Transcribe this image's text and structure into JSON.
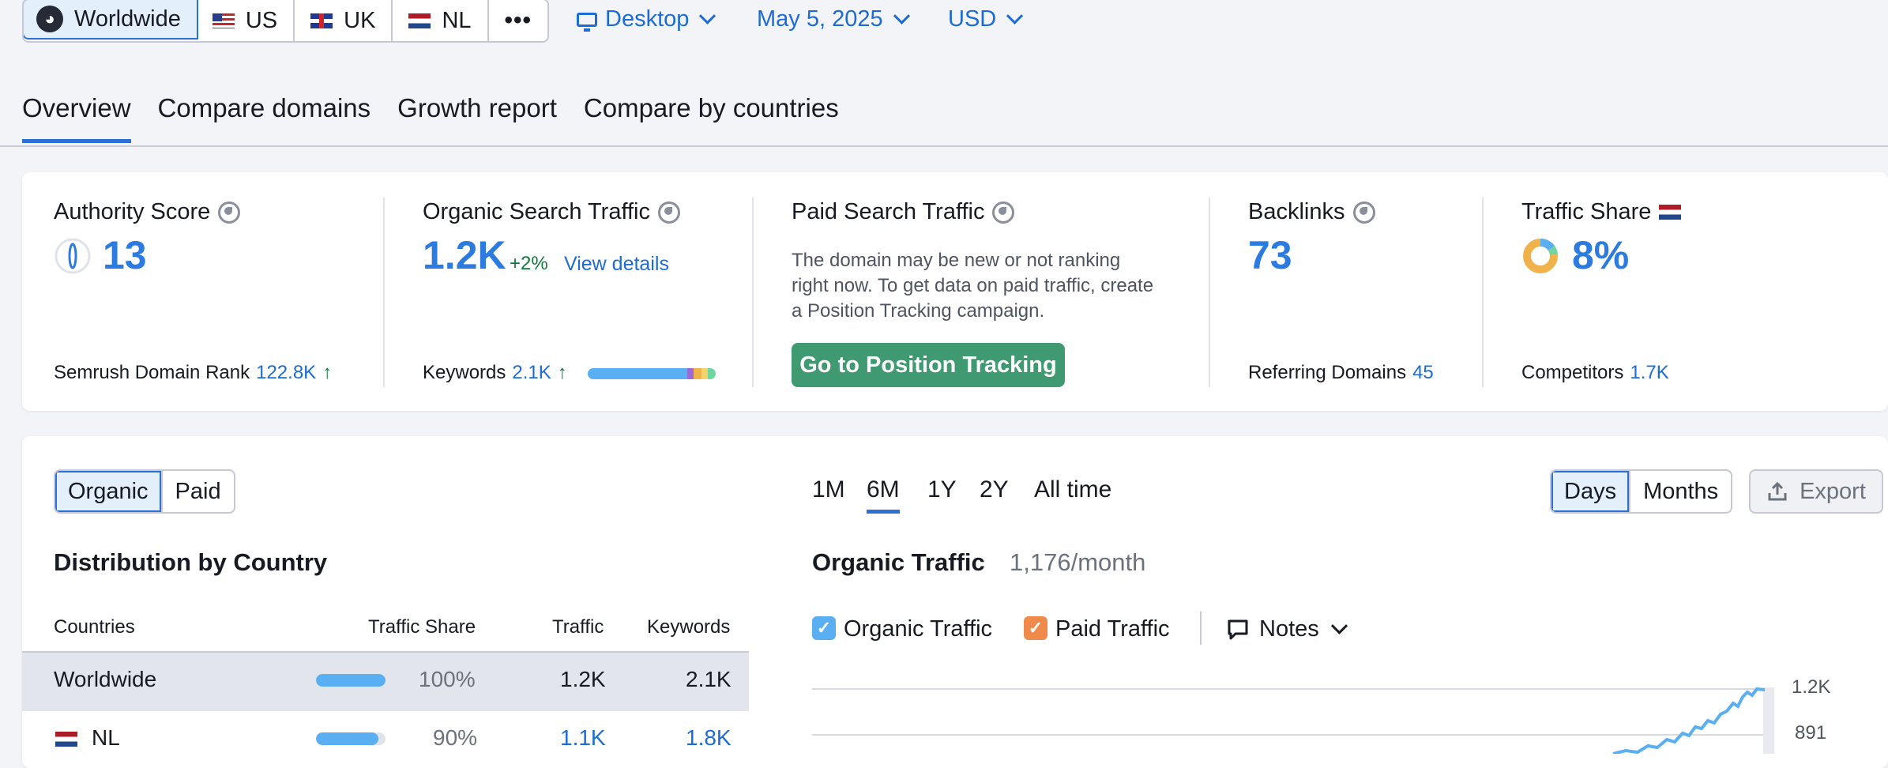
{
  "regions": [
    {
      "label": "Worldwide",
      "flag": "globe",
      "active": true
    },
    {
      "label": "US",
      "flag": "us",
      "active": false
    },
    {
      "label": "UK",
      "flag": "uk",
      "active": false
    },
    {
      "label": "NL",
      "flag": "nl",
      "active": false
    }
  ],
  "more_label": "•••",
  "filters": {
    "device": "Desktop",
    "date": "May 5, 2025",
    "currency": "USD"
  },
  "tabs": [
    "Overview",
    "Compare domains",
    "Growth report",
    "Compare by countries"
  ],
  "metrics": {
    "authority": {
      "label": "Authority Score",
      "value": "13",
      "rank_label": "Semrush Domain Rank",
      "rank_value": "122.8K",
      "arrow": "↑"
    },
    "organic": {
      "label": "Organic Search Traffic",
      "value": "1.2K",
      "change": "+2%",
      "details": "View details",
      "kw_label": "Keywords",
      "kw_value": "2.1K",
      "arrow": "↑"
    },
    "paid": {
      "label": "Paid Search Traffic",
      "message": "The domain may be new or not ranking right now. To get data on paid traffic, create a Position Tracking campaign.",
      "button": "Go to Position Tracking"
    },
    "backlinks": {
      "label": "Backlinks",
      "value": "73",
      "ref_label": "Referring Domains",
      "ref_value": "45"
    },
    "share": {
      "label": "Traffic Share",
      "value": "8%",
      "comp_label": "Competitors",
      "comp_value": "1.7K"
    }
  },
  "toggle": {
    "organic": "Organic",
    "paid": "Paid"
  },
  "periods": [
    "1M",
    "6M",
    "1Y",
    "2Y",
    "All time"
  ],
  "granularity": {
    "days": "Days",
    "months": "Months"
  },
  "export_label": "Export",
  "distribution": {
    "title": "Distribution by Country",
    "headers": {
      "countries": "Countries",
      "share": "Traffic Share",
      "traffic": "Traffic",
      "keywords": "Keywords"
    },
    "rows": [
      {
        "country": "Worldwide",
        "share": "100%",
        "share_value": 1.0,
        "traffic": "1.2K",
        "keywords": "2.1K"
      },
      {
        "country": "NL",
        "share": "90%",
        "share_value": 0.9,
        "traffic": "1.1K",
        "keywords": "1.8K"
      }
    ]
  },
  "chart": {
    "title": "Organic Traffic",
    "subtitle": "1,176/month",
    "legend": {
      "organic": "Organic Traffic",
      "paid": "Paid Traffic",
      "notes": "Notes"
    },
    "y_ticks": [
      "1.2K",
      "891"
    ]
  },
  "colors": {
    "accent": "#2c6fd5",
    "organic": "#5aaff2",
    "paid": "#f08a4b",
    "cta": "#3f9a71"
  }
}
